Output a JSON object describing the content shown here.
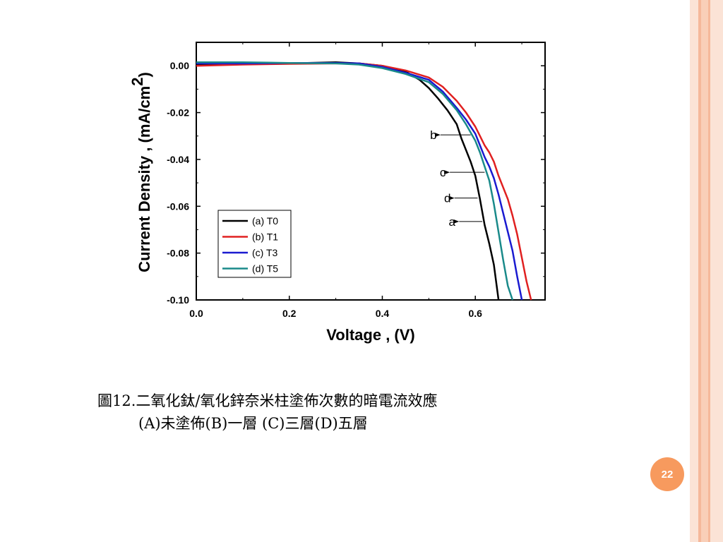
{
  "slide": {
    "page_number": "22",
    "caption_line1": "圖12.二氧化鈦/氧化鋅奈米柱塗佈次數的暗電流效應",
    "caption_line2": "(A)未塗佈(B)一層 (C)三層(D)五層",
    "stripe_colors": [
      "#fbe3d6",
      "#f5b89a",
      "#f9cfb8"
    ]
  },
  "chart_data": {
    "type": "line",
    "xlabel": "Voltage , (V)",
    "ylabel": "Current Density , (mA/cm",
    "ylabel_superscript": "2",
    "ylabel_close": ")",
    "xlim": [
      0.0,
      0.75
    ],
    "ylim": [
      -0.1,
      0.01
    ],
    "x_ticks": [
      0.0,
      0.2,
      0.4,
      0.6
    ],
    "x_tick_labels": [
      "0.0",
      "0.2",
      "0.4",
      "0.6"
    ],
    "y_ticks": [
      0.0,
      -0.02,
      -0.04,
      -0.06,
      -0.08,
      -0.1
    ],
    "y_tick_labels": [
      "0.00",
      "-0.02",
      "-0.04",
      "-0.06",
      "-0.08",
      "-0.10"
    ],
    "grid": false,
    "legend_position": "lower-left",
    "series": [
      {
        "name": "(a) T0",
        "color": "#000000",
        "points": [
          [
            0.0,
            0.0005
          ],
          [
            0.1,
            0.0008
          ],
          [
            0.2,
            0.001
          ],
          [
            0.3,
            0.0015
          ],
          [
            0.35,
            0.001
          ],
          [
            0.4,
            0.0
          ],
          [
            0.45,
            -0.0025
          ],
          [
            0.48,
            -0.006
          ],
          [
            0.5,
            -0.0095
          ],
          [
            0.52,
            -0.014
          ],
          [
            0.54,
            -0.019
          ],
          [
            0.56,
            -0.025
          ],
          [
            0.57,
            -0.031
          ],
          [
            0.58,
            -0.036
          ],
          [
            0.59,
            -0.041
          ],
          [
            0.6,
            -0.047
          ],
          [
            0.61,
            -0.057
          ],
          [
            0.62,
            -0.068
          ],
          [
            0.63,
            -0.076
          ],
          [
            0.64,
            -0.085
          ],
          [
            0.65,
            -0.1
          ]
        ]
      },
      {
        "name": "(b) T1",
        "color": "#e02020",
        "points": [
          [
            0.0,
            0.0
          ],
          [
            0.1,
            0.0005
          ],
          [
            0.2,
            0.0008
          ],
          [
            0.3,
            0.001
          ],
          [
            0.35,
            0.001
          ],
          [
            0.4,
            0.0
          ],
          [
            0.45,
            -0.002
          ],
          [
            0.5,
            -0.005
          ],
          [
            0.53,
            -0.009
          ],
          [
            0.56,
            -0.015
          ],
          [
            0.58,
            -0.02
          ],
          [
            0.6,
            -0.026
          ],
          [
            0.61,
            -0.03
          ],
          [
            0.62,
            -0.034
          ],
          [
            0.63,
            -0.037
          ],
          [
            0.64,
            -0.041
          ],
          [
            0.65,
            -0.047
          ],
          [
            0.66,
            -0.052
          ],
          [
            0.67,
            -0.057
          ],
          [
            0.68,
            -0.064
          ],
          [
            0.69,
            -0.072
          ],
          [
            0.7,
            -0.082
          ],
          [
            0.71,
            -0.092
          ],
          [
            0.72,
            -0.1
          ]
        ]
      },
      {
        "name": "(c) T3",
        "color": "#1a1ad0",
        "points": [
          [
            0.0,
            0.001
          ],
          [
            0.1,
            0.001
          ],
          [
            0.2,
            0.0012
          ],
          [
            0.3,
            0.0012
          ],
          [
            0.35,
            0.001
          ],
          [
            0.4,
            -0.0005
          ],
          [
            0.45,
            -0.003
          ],
          [
            0.5,
            -0.006
          ],
          [
            0.53,
            -0.011
          ],
          [
            0.56,
            -0.018
          ],
          [
            0.58,
            -0.023
          ],
          [
            0.6,
            -0.029
          ],
          [
            0.61,
            -0.034
          ],
          [
            0.62,
            -0.039
          ],
          [
            0.63,
            -0.043
          ],
          [
            0.64,
            -0.048
          ],
          [
            0.65,
            -0.055
          ],
          [
            0.66,
            -0.063
          ],
          [
            0.67,
            -0.071
          ],
          [
            0.68,
            -0.079
          ],
          [
            0.69,
            -0.09
          ],
          [
            0.7,
            -0.1
          ]
        ]
      },
      {
        "name": "(d) T5",
        "color": "#1a8a8a",
        "points": [
          [
            0.0,
            0.0015
          ],
          [
            0.1,
            0.0015
          ],
          [
            0.2,
            0.0012
          ],
          [
            0.3,
            0.001
          ],
          [
            0.35,
            0.0005
          ],
          [
            0.4,
            -0.001
          ],
          [
            0.45,
            -0.0035
          ],
          [
            0.5,
            -0.007
          ],
          [
            0.53,
            -0.012
          ],
          [
            0.56,
            -0.019
          ],
          [
            0.58,
            -0.025
          ],
          [
            0.6,
            -0.032
          ],
          [
            0.61,
            -0.037
          ],
          [
            0.62,
            -0.043
          ],
          [
            0.63,
            -0.049
          ],
          [
            0.64,
            -0.059
          ],
          [
            0.65,
            -0.071
          ],
          [
            0.66,
            -0.083
          ],
          [
            0.67,
            -0.094
          ],
          [
            0.68,
            -0.1
          ]
        ]
      }
    ],
    "annotations": [
      {
        "text": "b",
        "x": 0.51,
        "y": -0.0295,
        "arrow_to": [
          0.59,
          -0.0295
        ]
      },
      {
        "text": "c",
        "x": 0.53,
        "y": -0.0455,
        "arrow_to": [
          0.62,
          -0.0455
        ]
      },
      {
        "text": "d",
        "x": 0.54,
        "y": -0.0565,
        "arrow_to": [
          0.605,
          -0.0565
        ]
      },
      {
        "text": "a",
        "x": 0.55,
        "y": -0.0665,
        "arrow_to": [
          0.615,
          -0.0665
        ]
      }
    ]
  }
}
